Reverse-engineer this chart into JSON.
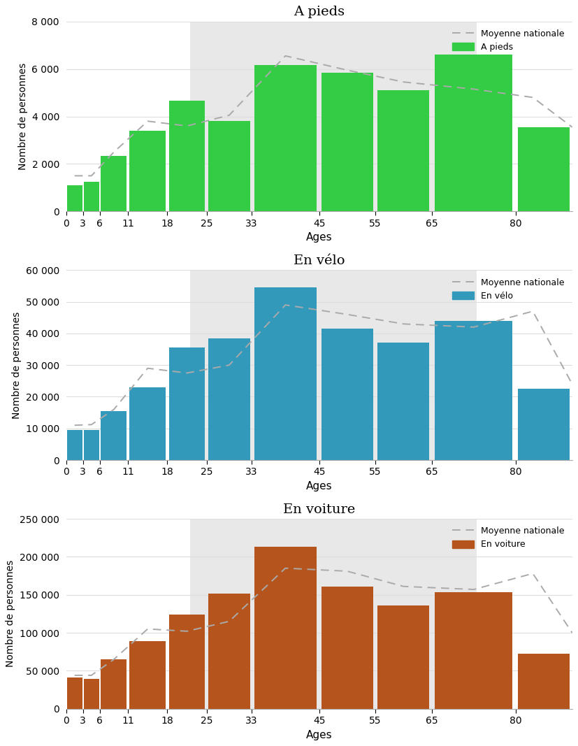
{
  "charts": [
    {
      "title": "A pieds",
      "bar_color": "#33cc44",
      "legend_label": "A pieds",
      "ylabel": "Nombre de personnes",
      "xlabel": "Ages",
      "ylim": [
        0,
        8000
      ],
      "yticks": [
        0,
        2000,
        4000,
        6000,
        8000
      ],
      "bar_values": [
        1100,
        1250,
        2350,
        3400,
        4650,
        3800,
        6150,
        5850,
        5100,
        6600,
        3550
      ],
      "line_values": [
        1500,
        1500,
        2500,
        3800,
        3600,
        4050,
        6550,
        5950,
        5450,
        5150,
        4800,
        3550
      ],
      "shade_start": 22,
      "shade_end": 73
    },
    {
      "title": "En vélo",
      "bar_color": "#3399bb",
      "legend_label": "En vélo",
      "ylabel": "Nombre de personnes",
      "xlabel": "Ages",
      "ylim": [
        0,
        60000
      ],
      "yticks": [
        0,
        10000,
        20000,
        30000,
        40000,
        50000,
        60000
      ],
      "bar_values": [
        9500,
        9500,
        15500,
        23000,
        35500,
        38500,
        54500,
        41500,
        37000,
        44000,
        22500
      ],
      "line_values": [
        11000,
        11200,
        16000,
        29000,
        27500,
        30000,
        49000,
        46000,
        43000,
        42000,
        47000,
        24000
      ],
      "shade_start": 22,
      "shade_end": 73
    },
    {
      "title": "En voiture",
      "bar_color": "#b5541c",
      "legend_label": "En voiture",
      "ylabel": "Nombre de personnes",
      "xlabel": "Ages",
      "ylim": [
        0,
        250000
      ],
      "yticks": [
        0,
        50000,
        100000,
        150000,
        200000,
        250000
      ],
      "bar_values": [
        41000,
        39000,
        65000,
        89000,
        124000,
        152000,
        213000,
        161000,
        136000,
        153000,
        72000
      ],
      "line_values": [
        44000,
        44000,
        65000,
        105000,
        102000,
        115000,
        185000,
        181000,
        161000,
        157000,
        178000,
        100000
      ],
      "shade_start": 22,
      "shade_end": 73
    }
  ],
  "age_edges": [
    0,
    3,
    6,
    11,
    18,
    25,
    33,
    45,
    55,
    65,
    80,
    90
  ],
  "age_ticks": [
    0,
    3,
    6,
    11,
    18,
    25,
    33,
    45,
    55,
    65,
    80
  ],
  "line_x": [
    1.5,
    4.5,
    8.5,
    14.5,
    21.5,
    29.0,
    39.0,
    50.0,
    60.0,
    72.5,
    83.0,
    90
  ],
  "dashed_color": "#aaaaaa",
  "xlim": [
    0,
    90
  ],
  "grid_color": "#dddddd"
}
